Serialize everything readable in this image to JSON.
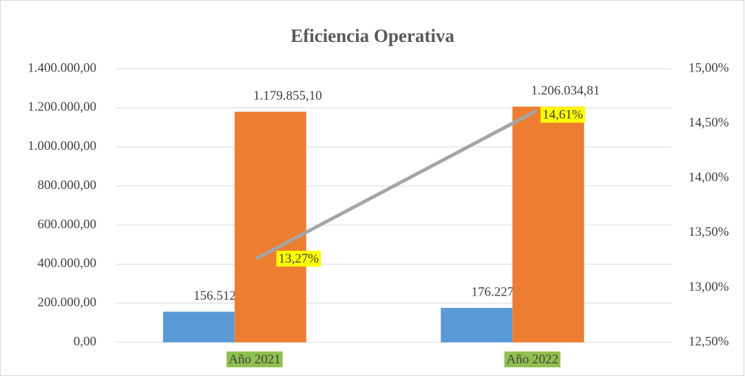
{
  "chart_data": {
    "type": "bar",
    "title": "Eficiencia Operativa",
    "categories": [
      "Año 2021",
      "Año 2022"
    ],
    "series": [
      {
        "type": "bar",
        "color": "#5b9bd5",
        "values": [
          156512.7,
          176227.91
        ],
        "value_labels": [
          "156.512,70",
          "176.227,91"
        ]
      },
      {
        "type": "bar",
        "color": "#ed7d31",
        "values": [
          1179855.1,
          1206034.81
        ],
        "value_labels": [
          "1.179.855,10",
          "1.206.034,81"
        ]
      },
      {
        "type": "line",
        "axis": "y2",
        "color": "#a5a5a5",
        "values": [
          13.27,
          14.61
        ],
        "value_labels": [
          "13,27%",
          "14,61%"
        ]
      }
    ],
    "ylim": [
      0,
      1400000
    ],
    "yticks": [
      {
        "value": 0,
        "label": "0,00"
      },
      {
        "value": 200000,
        "label": "200.000,00"
      },
      {
        "value": 400000,
        "label": "400.000,00"
      },
      {
        "value": 600000,
        "label": "600.000,00"
      },
      {
        "value": 800000,
        "label": "800.000,00"
      },
      {
        "value": 1000000,
        "label": "1.000.000,00"
      },
      {
        "value": 1200000,
        "label": "1.200.000,00"
      },
      {
        "value": 1400000,
        "label": "1.400.000,00"
      }
    ],
    "y2lim": [
      12.5,
      15
    ],
    "y2ticks": [
      {
        "value": 12.5,
        "label": "12,50%"
      },
      {
        "value": 13,
        "label": "13,00%"
      },
      {
        "value": 13.5,
        "label": "13,50%"
      },
      {
        "value": 14,
        "label": "14,00%"
      },
      {
        "value": 14.5,
        "label": "14,50%"
      },
      {
        "value": 15,
        "label": "15,00%"
      }
    ],
    "grid": true
  }
}
